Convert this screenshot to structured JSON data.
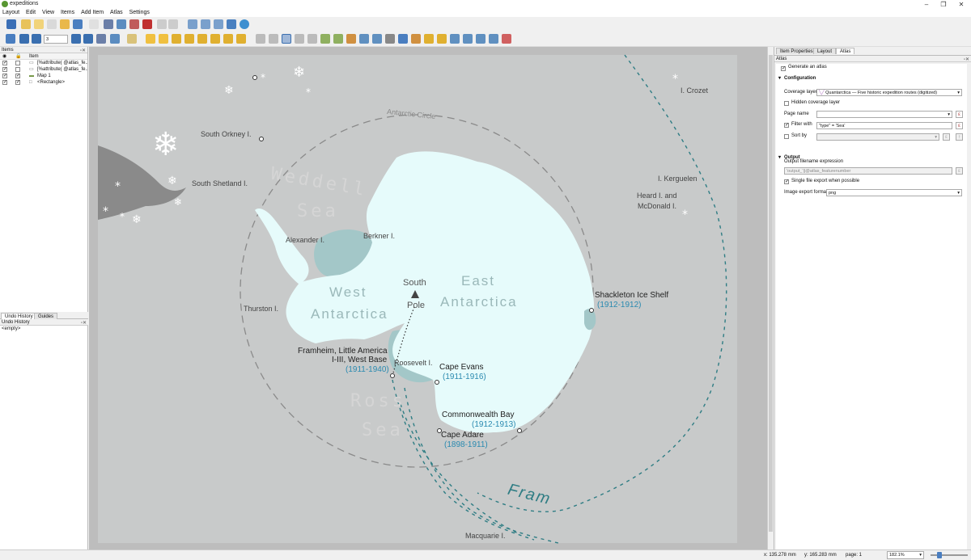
{
  "window": {
    "title": "expeditions",
    "minimize": "–",
    "maximize": "❐",
    "close": "✕"
  },
  "menu": [
    "Layout",
    "Edit",
    "View",
    "Items",
    "Add Item",
    "Atlas",
    "Settings"
  ],
  "atlas_nav": {
    "page_value": "3"
  },
  "items_panel": {
    "title": "Items",
    "header_item": "Item",
    "items": [
      {
        "label": "[%attribute( @atlas_fe...",
        "visible": true,
        "locked": false
      },
      {
        "label": "[%attribute( @atlas_fe...",
        "visible": true,
        "locked": false
      },
      {
        "label": "Map 1",
        "visible": true,
        "locked": true
      },
      {
        "label": "<Rectangle>",
        "visible": true,
        "locked": true
      }
    ]
  },
  "bottom_left": {
    "tabs": [
      "Undo History",
      "Guides"
    ],
    "title": "Undo History",
    "empty": "<empty>"
  },
  "right_panel": {
    "tabs": [
      "Item Properties",
      "Layout",
      "Atlas"
    ],
    "active_tab": "Atlas",
    "panel_title": "Atlas",
    "generate_atlas": "Generate an atlas",
    "config_title": "Configuration",
    "coverage_layer_label": "Coverage layer",
    "coverage_layer_value": "Quantarctica — Five historic expedition routes (digitized)",
    "hidden_coverage": "Hidden coverage layer",
    "page_name_label": "Page name",
    "filter_label": "Filter with",
    "filter_value": "\"type\" = 'Sea'",
    "sort_label": "Sort by",
    "output_title": "Output",
    "output_filename_label": "Output filename expression",
    "output_filename_value": "'output_'||@atlas_featurenumber",
    "single_file": "Single file export when possible",
    "image_format_label": "Image export format",
    "image_format_value": "png"
  },
  "status": {
    "x": "x: 135.278 mm",
    "y": "y: 165.283 mm",
    "page": "page: 1",
    "zoom": "182.1%"
  },
  "ruler_top_ticks": [
    "10",
    "20",
    "30",
    "40",
    "50",
    "60",
    "70",
    "80",
    "90",
    "100",
    "110",
    "120",
    "130",
    "140",
    "150",
    "160",
    "170",
    "180",
    "190",
    "200",
    "210"
  ],
  "map": {
    "antarctic_circle": "Antarctic Circle",
    "weddell_sea": [
      "Weddell",
      "Sea"
    ],
    "ross_sea": [
      "Ross",
      "Sea"
    ],
    "west_antarctica": [
      "West",
      "Antarctica"
    ],
    "east_antarctica": [
      "East",
      "Antarctica"
    ],
    "south_pole": [
      "South",
      "Pole"
    ],
    "fram": "Fram",
    "places": {
      "south_orkney": "South Orkney I.",
      "south_shetland": "South Shetland I.",
      "alexander": "Alexander I.",
      "berkner": "Berkner I.",
      "thurston": "Thurston I.",
      "roosevelt": "Roosevelt I.",
      "crozet": "I. Crozet",
      "kerguelen": "I. Kerguelen",
      "heard": [
        "Heard I. and",
        "McDonald I."
      ],
      "macquarie": "Macquarie I.",
      "framheim": [
        "Framheim, Little America",
        "I-III, West Base"
      ],
      "framheim_years": "(1911-1940)",
      "cape_evans": "Cape Evans",
      "cape_evans_years": "(1911-1916)",
      "shackleton": "Shackleton Ice Shelf",
      "shackleton_years": "(1912-1912)",
      "commonwealth": "Commonwealth Bay",
      "commonwealth_years": "(1912-1913)",
      "cape_adare": "Cape Adare",
      "cape_adare_years": "(1898-1911)"
    }
  },
  "colors": {
    "route": "#2f7d84",
    "ice": "#e6fbfb",
    "shelf": "#a3c7c8",
    "ocean": "#c7c9c9",
    "label_blue": "#2a8ab0"
  }
}
